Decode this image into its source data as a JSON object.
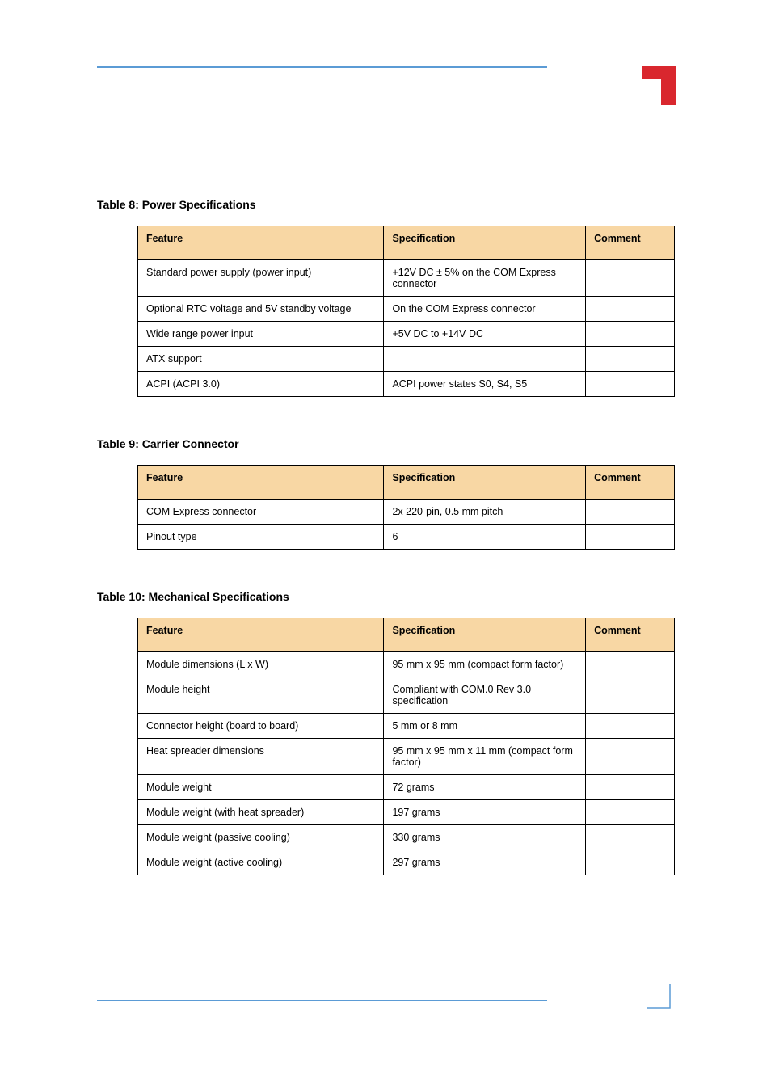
{
  "page": {
    "bg_color": "#ffffff",
    "accent_color": "#5b9bd5",
    "header_bg": "#f8d7a4",
    "border_color": "#000000",
    "logo_red": "#d9272e",
    "font_size_title": 14,
    "font_size_body": 12.5
  },
  "sections": [
    {
      "title": "Table 8: Power Specifications",
      "columns": [
        "Feature",
        "Specification",
        "Comment"
      ],
      "rows": [
        [
          "Standard power supply (power input)",
          "+12V DC ± 5% on the COM Express connector",
          ""
        ],
        [
          "Optional RTC voltage and 5V standby voltage",
          "On the COM Express connector",
          ""
        ],
        [
          "Wide range power input",
          "+5V DC to +14V DC",
          ""
        ],
        [
          "ATX support",
          "",
          ""
        ],
        [
          "ACPI (ACPI 3.0)",
          "ACPI power states S0, S4, S5",
          ""
        ]
      ]
    },
    {
      "title": "Table 9: Carrier Connector",
      "columns": [
        "Feature",
        "Specification",
        "Comment"
      ],
      "rows": [
        [
          "COM Express connector",
          "2x 220-pin, 0.5 mm pitch",
          ""
        ],
        [
          "Pinout type",
          "6",
          ""
        ]
      ]
    },
    {
      "title": "Table 10: Mechanical Specifications",
      "columns": [
        "Feature",
        "Specification",
        "Comment"
      ],
      "rows": [
        [
          "Module dimensions (L x W)",
          "95 mm x 95 mm (compact form factor)",
          ""
        ],
        [
          "Module height",
          "Compliant with COM.0 Rev 3.0 specification",
          ""
        ],
        [
          "Connector height (board to board)",
          "5 mm or 8 mm",
          ""
        ],
        [
          "Heat spreader dimensions",
          "95 mm x 95 mm x 11 mm (compact form factor)",
          ""
        ],
        [
          "Module weight",
          "72 grams",
          ""
        ],
        [
          "Module weight (with heat spreader)",
          "197 grams",
          ""
        ],
        [
          "Module weight (passive cooling)",
          "330 grams",
          ""
        ],
        [
          "Module weight (active cooling)",
          "297 grams",
          ""
        ]
      ]
    }
  ]
}
